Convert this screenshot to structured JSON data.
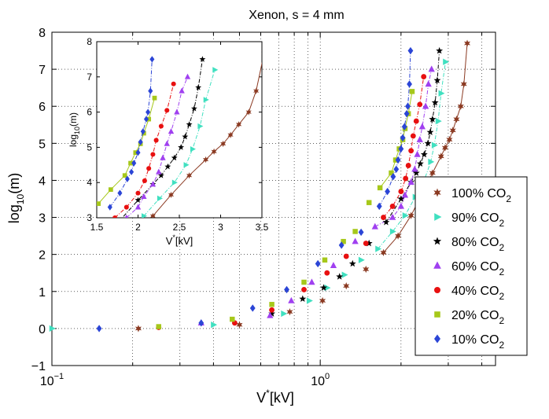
{
  "chart_data": {
    "type": "line",
    "title": "Xenon, s = 4 mm",
    "xlabel": {
      "main": "V",
      "sup": "*",
      "tail": "[kV]"
    },
    "ylabel": {
      "main": "log",
      "sub": "10",
      "tail": "(m)"
    },
    "xscale": "log",
    "xlim": [
      0.1,
      4.5
    ],
    "ylim": [
      -1,
      8
    ],
    "x_ticks": [
      {
        "value": 0.1,
        "base": "10",
        "exp": "−1"
      },
      {
        "value": 1,
        "base": "10",
        "exp": "0"
      }
    ],
    "y_ticks": [
      -1,
      0,
      1,
      2,
      3,
      4,
      5,
      6,
      7,
      8
    ],
    "y_tick_labels": [
      "−1",
      "0",
      "1",
      "2",
      "3",
      "4",
      "5",
      "6",
      "7",
      "8"
    ],
    "grid": true,
    "legend_position": "right",
    "series": [
      {
        "name": "100% CO2",
        "label": "100%",
        "gas": "CO",
        "sub": "2",
        "color": "#8b3a22",
        "marker": "star6",
        "line": "solid",
        "points": [
          [
            0.21,
            0
          ],
          [
            0.5,
            0.1
          ],
          [
            0.77,
            0.45
          ],
          [
            1.02,
            0.75
          ],
          [
            1.25,
            1.15
          ],
          [
            1.48,
            1.6
          ],
          [
            1.72,
            2.05
          ],
          [
            1.95,
            2.5
          ],
          [
            2.18,
            3.05
          ],
          [
            2.4,
            3.65
          ],
          [
            2.62,
            4.2
          ],
          [
            2.82,
            4.65
          ],
          [
            2.92,
            4.88
          ],
          [
            3.03,
            5.1
          ],
          [
            3.12,
            5.35
          ],
          [
            3.22,
            5.65
          ],
          [
            3.34,
            6.0
          ],
          [
            3.43,
            6.6
          ],
          [
            3.53,
            7.7
          ]
        ]
      },
      {
        "name": "90% CO2",
        "label": "90%",
        "gas": "CO",
        "sub": "2",
        "color": "#40e0c0",
        "marker": "tri-right",
        "line": "dash-dot",
        "points": [
          [
            0.1,
            0
          ],
          [
            0.4,
            0.1
          ],
          [
            0.73,
            0.4
          ],
          [
            0.91,
            0.75
          ],
          [
            1.06,
            1.1
          ],
          [
            1.23,
            1.45
          ],
          [
            1.42,
            1.85
          ],
          [
            1.64,
            2.15
          ],
          [
            1.86,
            2.62
          ],
          [
            2.07,
            3.05
          ],
          [
            2.26,
            3.55
          ],
          [
            2.44,
            4.0
          ],
          [
            2.58,
            4.5
          ],
          [
            2.66,
            4.95
          ],
          [
            2.75,
            5.6
          ],
          [
            2.82,
            6.35
          ],
          [
            2.93,
            7.2
          ]
        ]
      },
      {
        "name": "80% CO2",
        "label": "80%",
        "gas": "CO",
        "sub": "2",
        "color": "#000000",
        "marker": "star5",
        "line": "dash-dot",
        "points": [
          [
            0.66,
            0.4
          ],
          [
            0.86,
            0.8
          ],
          [
            1.03,
            1.1
          ],
          [
            1.18,
            1.4
          ],
          [
            1.32,
            1.75
          ],
          [
            1.52,
            2.3
          ],
          [
            1.76,
            2.87
          ],
          [
            2.0,
            3.5
          ],
          [
            2.18,
            3.95
          ],
          [
            2.28,
            4.2
          ],
          [
            2.36,
            4.45
          ],
          [
            2.44,
            4.7
          ],
          [
            2.52,
            5.0
          ],
          [
            2.57,
            5.3
          ],
          [
            2.62,
            5.65
          ],
          [
            2.68,
            6.1
          ],
          [
            2.73,
            6.7
          ],
          [
            2.78,
            7.5
          ]
        ]
      },
      {
        "name": "60% CO2",
        "label": "60%",
        "gas": "CO",
        "sub": "2",
        "color": "#a040f0",
        "marker": "tri-up",
        "line": "dash-dot",
        "points": [
          [
            0.36,
            0.15
          ],
          [
            0.65,
            0.35
          ],
          [
            0.78,
            0.75
          ],
          [
            0.93,
            1.25
          ],
          [
            1.12,
            1.7
          ],
          [
            1.35,
            2.35
          ],
          [
            1.6,
            2.75
          ],
          [
            1.86,
            3.0
          ],
          [
            2.0,
            3.3
          ],
          [
            2.07,
            3.6
          ],
          [
            2.18,
            3.95
          ],
          [
            2.25,
            4.3
          ],
          [
            2.3,
            4.7
          ],
          [
            2.35,
            5.1
          ],
          [
            2.4,
            5.45
          ],
          [
            2.47,
            6.0
          ],
          [
            2.53,
            6.6
          ],
          [
            2.6,
            7.0
          ]
        ]
      },
      {
        "name": "40% CO2",
        "label": "40%",
        "gas": "CO",
        "sub": "2",
        "color": "#e81010",
        "marker": "circle",
        "line": "dash-dot",
        "points": [
          [
            0.25,
            0.03
          ],
          [
            0.48,
            0.15
          ],
          [
            0.66,
            0.5
          ],
          [
            0.87,
            1.05
          ],
          [
            1.06,
            1.5
          ],
          [
            1.25,
            1.95
          ],
          [
            1.48,
            2.3
          ],
          [
            1.72,
            3.0
          ],
          [
            1.86,
            3.3
          ],
          [
            2.0,
            3.7
          ],
          [
            2.08,
            4.05
          ],
          [
            2.13,
            4.4
          ],
          [
            2.18,
            4.8
          ],
          [
            2.22,
            5.2
          ],
          [
            2.28,
            5.6
          ],
          [
            2.35,
            6.05
          ],
          [
            2.43,
            6.8
          ]
        ]
      },
      {
        "name": "20% CO2",
        "label": "20%",
        "gas": "CO",
        "sub": "2",
        "color": "#a6c81a",
        "marker": "square",
        "line": "solid",
        "points": [
          [
            0.25,
            0.05
          ],
          [
            0.47,
            0.25
          ],
          [
            0.66,
            0.65
          ],
          [
            0.87,
            1.25
          ],
          [
            1.04,
            1.85
          ],
          [
            1.22,
            2.35
          ],
          [
            1.35,
            2.62
          ],
          [
            1.52,
            3.4
          ],
          [
            1.67,
            3.8
          ],
          [
            1.84,
            4.2
          ],
          [
            1.91,
            4.55
          ],
          [
            1.97,
            4.85
          ],
          [
            2.03,
            5.1
          ],
          [
            2.07,
            5.4
          ],
          [
            2.13,
            5.8
          ],
          [
            2.2,
            6.4
          ]
        ]
      },
      {
        "name": "10% CO2",
        "label": "10%",
        "gas": "CO",
        "sub": "2",
        "color": "#2b45d6",
        "marker": "diamond",
        "line": "dash-dot",
        "points": [
          [
            0.15,
            0
          ],
          [
            0.36,
            0.15
          ],
          [
            0.56,
            0.55
          ],
          [
            0.75,
            1.05
          ],
          [
            0.98,
            1.75
          ],
          [
            1.2,
            2.25
          ],
          [
            1.42,
            2.6
          ],
          [
            1.66,
            3.3
          ],
          [
            1.78,
            3.7
          ],
          [
            1.87,
            4.1
          ],
          [
            1.92,
            4.3
          ],
          [
            1.95,
            4.55
          ],
          [
            2.0,
            4.85
          ],
          [
            2.03,
            5.15
          ],
          [
            2.06,
            5.45
          ],
          [
            2.1,
            5.8
          ],
          [
            2.12,
            6.0
          ],
          [
            2.15,
            6.6
          ],
          [
            2.17,
            7.5
          ]
        ]
      }
    ],
    "inset": {
      "xscale": "linear",
      "xlim": [
        1.5,
        3.5
      ],
      "ylim": [
        3,
        8
      ],
      "x_ticks": [
        1.5,
        2,
        2.5,
        3,
        3.5
      ],
      "x_tick_labels": [
        "1.5",
        "2",
        "2.5",
        "3",
        "3.5"
      ],
      "y_ticks": [
        3,
        4,
        5,
        6,
        7,
        8
      ],
      "y_tick_labels": [
        "3",
        "4",
        "5",
        "6",
        "7",
        "8"
      ],
      "xlabel": {
        "main": "V",
        "sup": "*",
        "tail": "[kV]"
      },
      "ylabel": {
        "main": "log",
        "sub": "10",
        "tail": "(m)"
      }
    }
  }
}
